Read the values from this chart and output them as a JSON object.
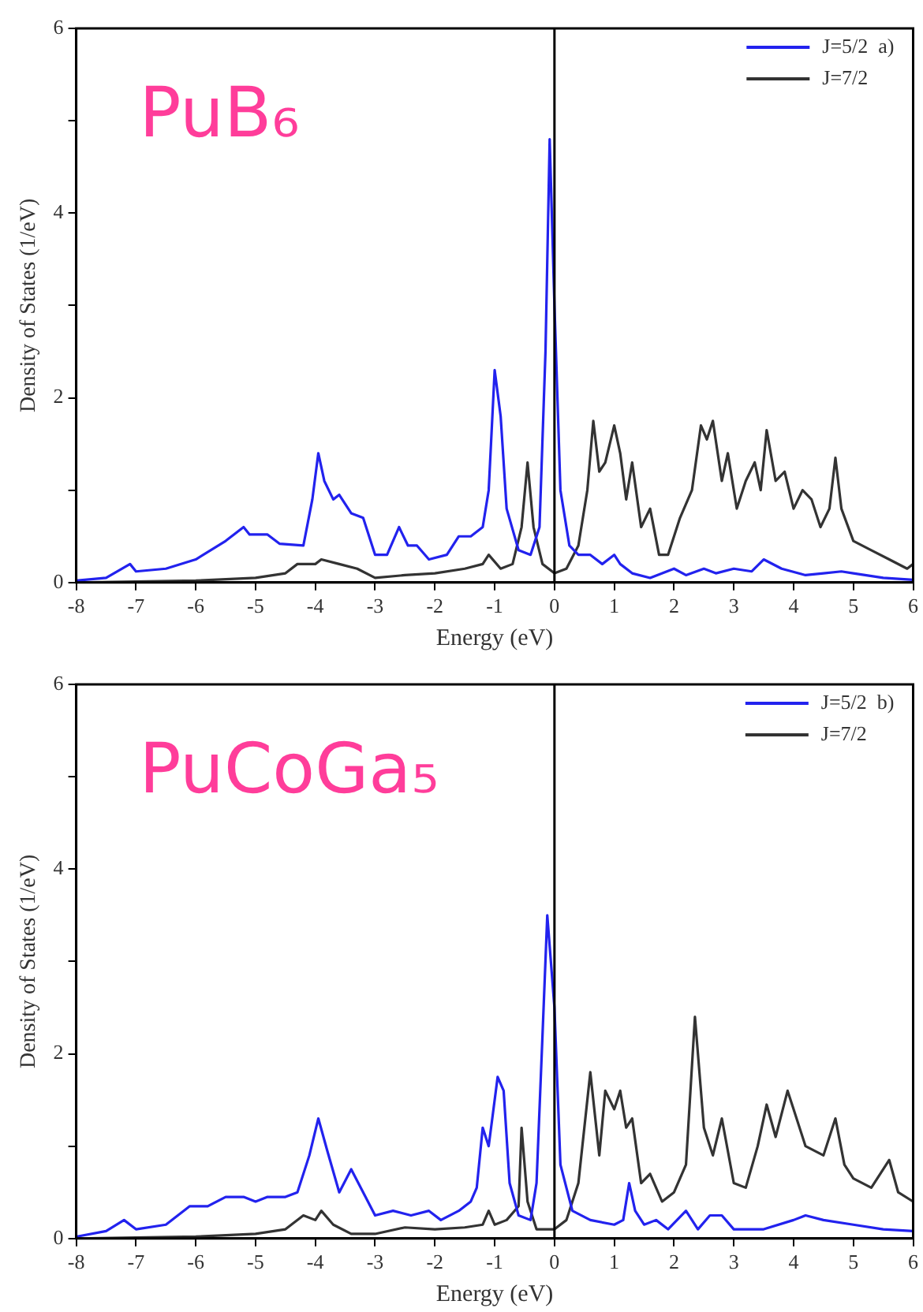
{
  "chart_data": [
    {
      "type": "line",
      "xlabel": "Energy (eV)",
      "ylabel": "Density of States (1/eV)",
      "annotations": [
        "PuB₆"
      ],
      "xlim": [
        -8,
        6
      ],
      "xticks": [
        -8,
        -7,
        -6,
        -5,
        -4,
        -3,
        -2,
        -1,
        0,
        1,
        2,
        3,
        4,
        5,
        6
      ],
      "ylim": [
        0,
        6
      ],
      "yticks": [
        0,
        {
          "value": 1,
          "label": null
        },
        2,
        {
          "value": 3,
          "label": null
        },
        4,
        {
          "value": 5,
          "label": null
        },
        6
      ],
      "grid": false,
      "legend": "top right",
      "marker": "none",
      "line_style": "solid",
      "ref_lines": [
        {
          "axis": "x",
          "value": 0,
          "color": "#000000"
        }
      ],
      "series": [
        {
          "name": "J=5/2  a)",
          "color": "#2222ee",
          "x": [
            -8,
            -7.5,
            -7.1,
            -7,
            -6.5,
            -6,
            -5.5,
            -5.2,
            -5.1,
            -4.8,
            -4.6,
            -4.2,
            -4.05,
            -3.95,
            -3.85,
            -3.7,
            -3.6,
            -3.4,
            -3.2,
            -3,
            -2.8,
            -2.6,
            -2.45,
            -2.3,
            -2.1,
            -1.8,
            -1.6,
            -1.4,
            -1.2,
            -1.1,
            -1,
            -0.9,
            -0.8,
            -0.6,
            -0.4,
            -0.25,
            -0.15,
            -0.08,
            0,
            0.1,
            0.25,
            0.4,
            0.6,
            0.8,
            1,
            1.1,
            1.3,
            1.6,
            2,
            2.2,
            2.5,
            2.7,
            3,
            3.3,
            3.5,
            3.8,
            4.2,
            4.5,
            4.8,
            5,
            5.5,
            6
          ],
          "values": [
            0.02,
            0.05,
            0.2,
            0.12,
            0.15,
            0.25,
            0.45,
            0.6,
            0.52,
            0.52,
            0.42,
            0.4,
            0.9,
            1.4,
            1.1,
            0.9,
            0.95,
            0.75,
            0.7,
            0.3,
            0.3,
            0.6,
            0.4,
            0.4,
            0.25,
            0.3,
            0.5,
            0.5,
            0.6,
            1,
            2.3,
            1.8,
            0.8,
            0.35,
            0.3,
            0.6,
            2.5,
            4.8,
            3,
            1,
            0.4,
            0.3,
            0.3,
            0.2,
            0.3,
            0.2,
            0.1,
            0.05,
            0.15,
            0.08,
            0.15,
            0.1,
            0.15,
            0.12,
            0.25,
            0.15,
            0.08,
            0.1,
            0.12,
            0.1,
            0.05,
            0.03
          ]
        },
        {
          "name": "J=7/2",
          "color": "#333333",
          "x": [
            -8,
            -6,
            -5,
            -4.5,
            -4.3,
            -4,
            -3.9,
            -3.6,
            -3.3,
            -3,
            -2.5,
            -2,
            -1.5,
            -1.2,
            -1.1,
            -0.9,
            -0.7,
            -0.55,
            -0.45,
            -0.35,
            -0.2,
            0,
            0.2,
            0.4,
            0.55,
            0.65,
            0.75,
            0.85,
            1,
            1.1,
            1.2,
            1.3,
            1.45,
            1.6,
            1.75,
            1.9,
            2.1,
            2.3,
            2.45,
            2.55,
            2.65,
            2.8,
            2.9,
            3.05,
            3.2,
            3.35,
            3.45,
            3.55,
            3.7,
            3.85,
            4,
            4.15,
            4.3,
            4.45,
            4.6,
            4.7,
            4.8,
            5,
            5.3,
            5.6,
            5.9,
            6
          ],
          "values": [
            0,
            0.02,
            0.05,
            0.1,
            0.2,
            0.2,
            0.25,
            0.2,
            0.15,
            0.05,
            0.08,
            0.1,
            0.15,
            0.2,
            0.3,
            0.15,
            0.2,
            0.6,
            1.3,
            0.6,
            0.2,
            0.1,
            0.15,
            0.4,
            1,
            1.75,
            1.2,
            1.3,
            1.7,
            1.4,
            0.9,
            1.3,
            0.6,
            0.8,
            0.3,
            0.3,
            0.7,
            1,
            1.7,
            1.55,
            1.75,
            1.1,
            1.4,
            0.8,
            1.1,
            1.3,
            1,
            1.65,
            1.1,
            1.2,
            0.8,
            1,
            0.9,
            0.6,
            0.8,
            1.35,
            0.8,
            0.45,
            0.35,
            0.25,
            0.15,
            0.2
          ]
        }
      ]
    },
    {
      "type": "line",
      "xlabel": "Energy (eV)",
      "ylabel": "Density of States (1/eV)",
      "annotations": [
        "PuCoGa₅"
      ],
      "xlim": [
        -8,
        6
      ],
      "xticks": [
        -8,
        -7,
        -6,
        -5,
        -4,
        -3,
        -2,
        -1,
        0,
        1,
        2,
        3,
        4,
        5,
        6
      ],
      "ylim": [
        0,
        6
      ],
      "yticks": [
        0,
        {
          "value": 1,
          "label": null
        },
        2,
        {
          "value": 3,
          "label": null
        },
        4,
        {
          "value": 5,
          "label": null
        },
        6
      ],
      "grid": false,
      "legend": "top right",
      "marker": "none",
      "line_style": "solid",
      "ref_lines": [
        {
          "axis": "x",
          "value": 0,
          "color": "#000000"
        }
      ],
      "series": [
        {
          "name": "J=5/2  b)",
          "color": "#2222ee",
          "x": [
            -8,
            -7.5,
            -7.2,
            -7,
            -6.5,
            -6.1,
            -5.8,
            -5.5,
            -5.2,
            -5,
            -4.8,
            -4.5,
            -4.3,
            -4.1,
            -3.95,
            -3.8,
            -3.6,
            -3.4,
            -3.2,
            -3,
            -2.7,
            -2.4,
            -2.1,
            -1.9,
            -1.6,
            -1.4,
            -1.3,
            -1.2,
            -1.1,
            -0.95,
            -0.85,
            -0.75,
            -0.6,
            -0.4,
            -0.3,
            -0.2,
            -0.12,
            0,
            0.1,
            0.3,
            0.6,
            1,
            1.15,
            1.25,
            1.35,
            1.5,
            1.7,
            1.9,
            2.2,
            2.4,
            2.6,
            2.8,
            3,
            3.5,
            4,
            4.2,
            4.5,
            5,
            5.5,
            6
          ],
          "values": [
            0.02,
            0.08,
            0.2,
            0.1,
            0.15,
            0.35,
            0.35,
            0.45,
            0.45,
            0.4,
            0.45,
            0.45,
            0.5,
            0.9,
            1.3,
            0.95,
            0.5,
            0.75,
            0.5,
            0.25,
            0.3,
            0.25,
            0.3,
            0.2,
            0.3,
            0.4,
            0.55,
            1.2,
            1,
            1.75,
            1.6,
            0.6,
            0.25,
            0.2,
            0.6,
            2.2,
            3.5,
            2.5,
            0.8,
            0.3,
            0.2,
            0.15,
            0.2,
            0.6,
            0.3,
            0.15,
            0.2,
            0.1,
            0.3,
            0.1,
            0.25,
            0.25,
            0.1,
            0.1,
            0.2,
            0.25,
            0.2,
            0.15,
            0.1,
            0.08
          ]
        },
        {
          "name": "J=7/2",
          "color": "#333333",
          "x": [
            -8,
            -6,
            -5,
            -4.5,
            -4.2,
            -4,
            -3.9,
            -3.7,
            -3.4,
            -3,
            -2.5,
            -2,
            -1.5,
            -1.2,
            -1.1,
            -1,
            -0.8,
            -0.6,
            -0.55,
            -0.45,
            -0.3,
            0,
            0.2,
            0.4,
            0.6,
            0.75,
            0.85,
            1,
            1.1,
            1.2,
            1.3,
            1.45,
            1.6,
            1.8,
            2,
            2.2,
            2.35,
            2.5,
            2.65,
            2.8,
            3,
            3.2,
            3.4,
            3.55,
            3.7,
            3.9,
            4,
            4.2,
            4.5,
            4.7,
            4.85,
            5,
            5.3,
            5.6,
            5.75,
            6
          ],
          "values": [
            0,
            0.02,
            0.05,
            0.1,
            0.25,
            0.2,
            0.3,
            0.15,
            0.05,
            0.05,
            0.12,
            0.1,
            0.12,
            0.15,
            0.3,
            0.15,
            0.2,
            0.35,
            1.2,
            0.4,
            0.1,
            0.1,
            0.2,
            0.6,
            1.8,
            0.9,
            1.6,
            1.4,
            1.6,
            1.2,
            1.3,
            0.6,
            0.7,
            0.4,
            0.5,
            0.8,
            2.4,
            1.2,
            0.9,
            1.3,
            0.6,
            0.55,
            1,
            1.45,
            1.1,
            1.6,
            1.4,
            1,
            0.9,
            1.3,
            0.8,
            0.65,
            0.55,
            0.85,
            0.5,
            0.4
          ]
        }
      ]
    }
  ]
}
